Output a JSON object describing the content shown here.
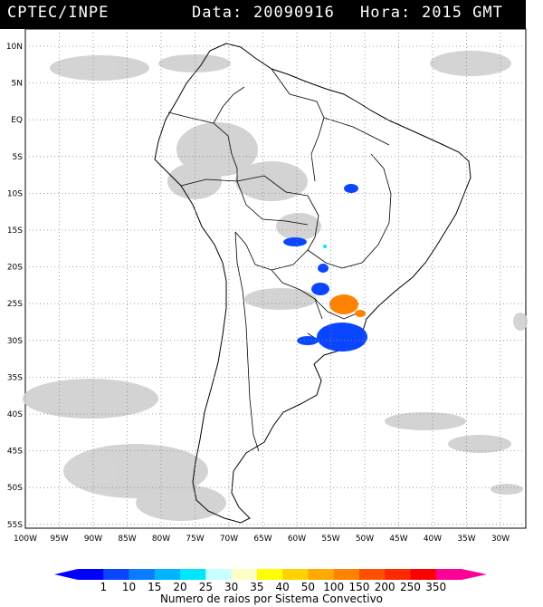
{
  "header": {
    "source": "CPTEC/INPE",
    "date_label": "Data:",
    "date_value": "20090916",
    "time_label": "Hora:",
    "time_value": "2015 GMT"
  },
  "map": {
    "lat_labels": [
      "10N",
      "5N",
      "EQ",
      "5S",
      "10S",
      "15S",
      "20S",
      "25S",
      "30S",
      "35S",
      "40S",
      "45S",
      "50S",
      "55S"
    ],
    "lon_labels": [
      "100W",
      "95W",
      "90W",
      "85W",
      "80W",
      "75W",
      "70W",
      "65W",
      "60W",
      "55W",
      "50W",
      "45W",
      "40W",
      "35W",
      "30W"
    ]
  },
  "colorbar": {
    "ticks": [
      "1",
      "10",
      "15",
      "20",
      "25",
      "30",
      "35",
      "40",
      "50",
      "100",
      "150",
      "200",
      "250",
      "350"
    ],
    "colors": [
      "#0000ff",
      "#0a46ff",
      "#0a7dff",
      "#00b4ff",
      "#00e6ff",
      "#c8ffff",
      "#ffffc8",
      "#ffff00",
      "#ffd200",
      "#ffaa00",
      "#ff8200",
      "#ff5000",
      "#ff2800",
      "#ff0000",
      "#ff0096"
    ],
    "caption": "Numero de raios por Sistema Convectivo"
  }
}
